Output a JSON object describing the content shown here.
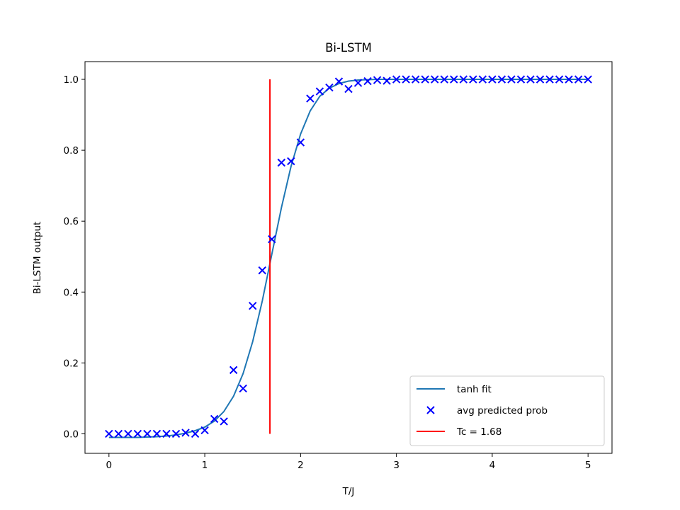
{
  "chart_data": {
    "type": "scatter",
    "title": "Bi-LSTM",
    "xlabel": "T/J",
    "ylabel": "Bi-LSTM output",
    "xlim": [
      -0.25,
      5.25
    ],
    "ylim": [
      -0.055,
      1.05
    ],
    "xticks": [
      0,
      1,
      2,
      3,
      4,
      5
    ],
    "yticks": [
      0.0,
      0.2,
      0.4,
      0.6,
      0.8,
      1.0
    ],
    "xtick_labels": [
      "0",
      "1",
      "2",
      "3",
      "4",
      "5"
    ],
    "ytick_labels": [
      "0.0",
      "0.2",
      "0.4",
      "0.6",
      "0.8",
      "1.0"
    ],
    "grid": false,
    "legend_position": "bottom-right",
    "series": [
      {
        "name": "tanh fit",
        "kind": "line",
        "color": "#1f77b4",
        "x": [
          0.0,
          0.1,
          0.2,
          0.3,
          0.4,
          0.5,
          0.6,
          0.7,
          0.8,
          0.9,
          1.0,
          1.1,
          1.2,
          1.3,
          1.4,
          1.5,
          1.6,
          1.7,
          1.8,
          1.9,
          2.0,
          2.1,
          2.2,
          2.3,
          2.4,
          2.5,
          2.6,
          2.7,
          2.8,
          2.9,
          3.0,
          3.2,
          3.4,
          3.6,
          3.8,
          4.0,
          4.2,
          4.4,
          4.6,
          4.8,
          5.0
        ],
        "y": [
          -0.01,
          -0.01,
          -0.01,
          -0.01,
          -0.009,
          -0.008,
          -0.006,
          -0.003,
          0.002,
          0.009,
          0.019,
          0.036,
          0.063,
          0.106,
          0.17,
          0.26,
          0.375,
          0.507,
          0.638,
          0.754,
          0.846,
          0.911,
          0.952,
          0.975,
          0.988,
          0.995,
          0.998,
          0.999,
          1.0,
          1.0,
          1.0,
          1.0,
          1.0,
          1.0,
          1.0,
          1.0,
          1.0,
          1.0,
          1.0,
          1.0,
          1.0
        ]
      },
      {
        "name": "avg predicted prob",
        "kind": "scatter",
        "marker": "x",
        "color": "#0000ff",
        "x": [
          0.0,
          0.1,
          0.2,
          0.3,
          0.4,
          0.5,
          0.6,
          0.7,
          0.8,
          0.9,
          1.0,
          1.1,
          1.2,
          1.3,
          1.4,
          1.5,
          1.6,
          1.7,
          1.8,
          1.9,
          2.0,
          2.1,
          2.2,
          2.3,
          2.4,
          2.5,
          2.6,
          2.7,
          2.8,
          2.9,
          3.0,
          3.1,
          3.2,
          3.3,
          3.4,
          3.5,
          3.6,
          3.7,
          3.8,
          3.9,
          4.0,
          4.1,
          4.2,
          4.3,
          4.4,
          4.5,
          4.6,
          4.7,
          4.8,
          4.9,
          5.0
        ],
        "y": [
          0.0,
          0.0,
          0.0,
          0.0,
          0.0,
          0.0,
          0.0,
          0.0,
          0.003,
          0.0,
          0.01,
          0.042,
          0.035,
          0.18,
          0.128,
          0.361,
          0.461,
          0.549,
          0.765,
          0.769,
          0.822,
          0.946,
          0.966,
          0.977,
          0.994,
          0.973,
          0.99,
          0.995,
          0.998,
          0.996,
          1.0,
          1.0,
          1.0,
          1.0,
          1.0,
          1.0,
          1.0,
          1.0,
          1.0,
          1.0,
          1.0,
          1.0,
          1.0,
          1.0,
          1.0,
          1.0,
          1.0,
          1.0,
          1.0,
          1.0,
          1.0
        ]
      },
      {
        "name": "Tc = 1.68",
        "kind": "vline",
        "color": "#ff0000",
        "x": 1.68,
        "y_range": [
          0.0,
          1.0
        ]
      }
    ]
  }
}
